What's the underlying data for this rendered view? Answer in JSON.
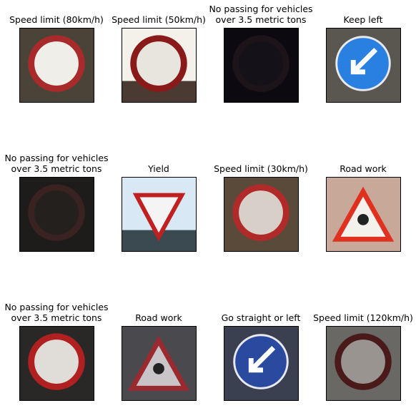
{
  "panels": [
    {
      "title": "Speed limit (80km/h)"
    },
    {
      "title": "Speed limit (50km/h)"
    },
    {
      "title": "No passing for vehicles\nover 3.5 metric tons"
    },
    {
      "title": "Keep left"
    },
    {
      "title": "No passing for vehicles\nover 3.5 metric tons"
    },
    {
      "title": "Yield"
    },
    {
      "title": "Speed limit (30km/h)"
    },
    {
      "title": "Road work"
    },
    {
      "title": "No passing for vehicles\nover 3.5 metric tons"
    },
    {
      "title": "Road work"
    },
    {
      "title": "Go straight or left"
    },
    {
      "title": "Speed limit (120km/h)"
    }
  ]
}
